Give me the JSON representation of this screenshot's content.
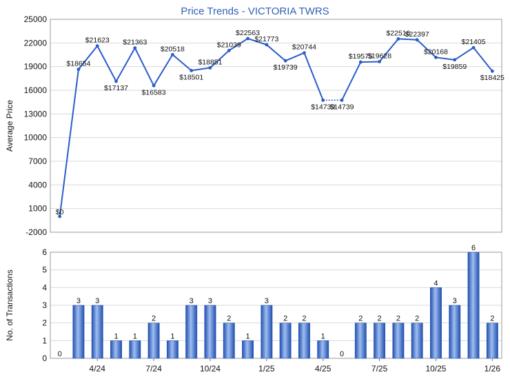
{
  "chart_data": [
    {
      "type": "line",
      "title": "Price Trends - VICTORIA TWRS",
      "ylabel": "Average Price",
      "ylim": [
        -2000,
        25000
      ],
      "yticks": [
        -2000,
        1000,
        4000,
        7000,
        10000,
        13000,
        16000,
        19000,
        22000,
        25000
      ],
      "grid": true,
      "color": "#2a5cc8",
      "series": [
        {
          "values": [
            0,
            18654,
            21623,
            17137,
            21363,
            16583,
            20518,
            18501,
            18851,
            21039,
            22563,
            21773,
            19739,
            20744,
            14739,
            14739,
            19575,
            19628,
            22516,
            22397,
            20168,
            19859,
            21405,
            18425
          ],
          "labels": [
            "$0",
            "$18654",
            "$21623",
            "$17137",
            "$21363",
            "$16583",
            "$20518",
            "$18501",
            "$18851",
            "$21039",
            "$22563",
            "$21773",
            "$19739",
            "$20744",
            "$14739",
            "$14739",
            "$19575",
            "$19628",
            "$22516",
            "$22397",
            "$20168",
            "$19859",
            "$21405",
            "$18425"
          ]
        }
      ]
    },
    {
      "type": "bar",
      "ylabel": "No. of Transactions",
      "ylim": [
        0,
        6
      ],
      "yticks": [
        0,
        1,
        2,
        3,
        4,
        5,
        6
      ],
      "grid": true,
      "color": "#2f5fbf",
      "x_tick_labels": [
        "4/24",
        "7/24",
        "10/24",
        "1/25",
        "4/25",
        "7/25",
        "10/25",
        "1/26"
      ],
      "values": [
        0,
        3,
        3,
        1,
        1,
        2,
        1,
        3,
        3,
        2,
        1,
        3,
        2,
        2,
        1,
        0,
        2,
        2,
        2,
        2,
        4,
        3,
        6,
        2
      ]
    }
  ]
}
